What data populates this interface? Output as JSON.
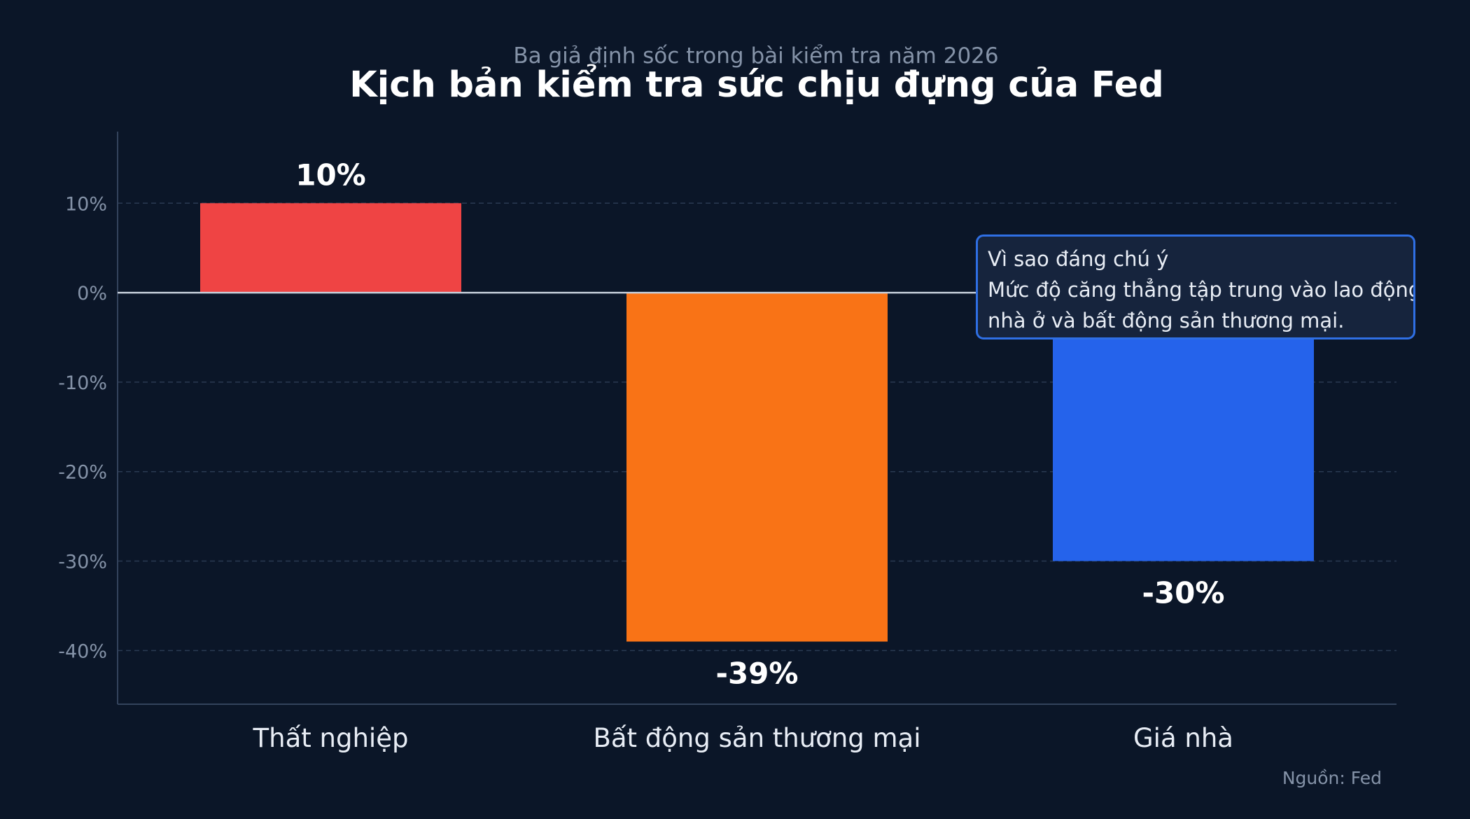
{
  "chart_data": {
    "type": "bar",
    "subtitle": "Ba giả định sốc trong bài kiểm tra năm 2026",
    "title": "Kịch bản kiểm tra sức chịu đựng của Fed",
    "categories": [
      "Thất nghiệp",
      "Bất động sản thương mại",
      "Giá nhà"
    ],
    "values": [
      10,
      -39,
      -30
    ],
    "data_labels": [
      "10%",
      "-39%",
      "-30%"
    ],
    "colors": [
      "#ef4444",
      "#f97316",
      "#2563eb"
    ],
    "yticks": [
      10,
      0,
      -10,
      -20,
      -30,
      -40
    ],
    "ytick_labels": [
      "10%",
      "0%",
      "-10%",
      "-20%",
      "-30%",
      "-40%"
    ],
    "ylim": [
      -46,
      18
    ],
    "grid": true,
    "legend": "none",
    "annotation": {
      "title": "Vì sao đáng chú ý",
      "lines": [
        "Mức độ căng thẳng tập trung vào lao động,",
        "nhà ở và bất động sản thương mại."
      ]
    },
    "source": "Nguồn: Fed"
  }
}
